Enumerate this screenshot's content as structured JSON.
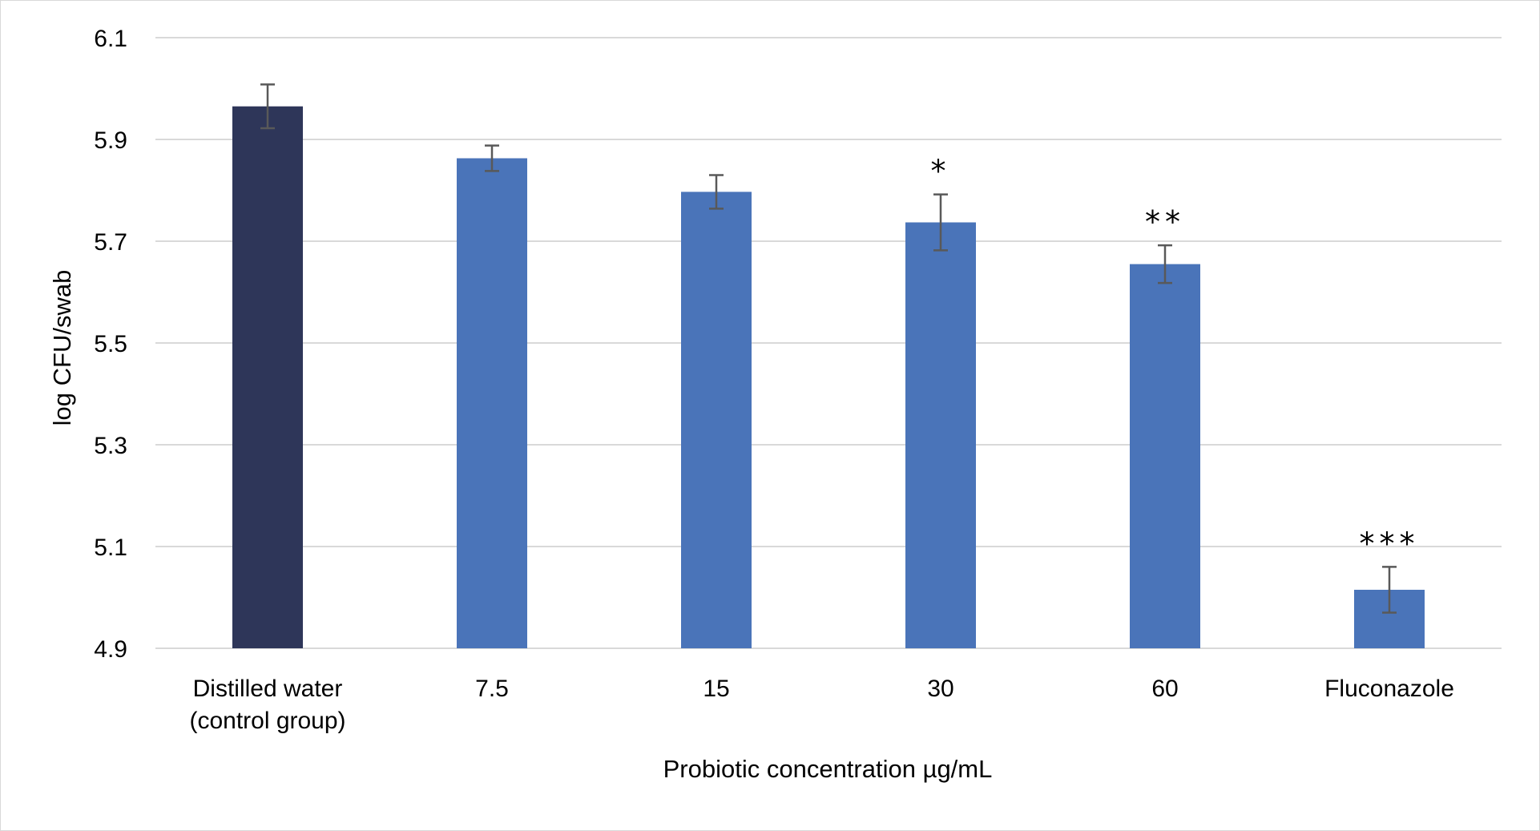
{
  "chart_data": {
    "type": "bar",
    "title": "",
    "xlabel": "Probiotic concentration µg/mL",
    "ylabel": "log CFU/swab",
    "ylim": [
      4.9,
      6.1
    ],
    "yticks": [
      "4.9",
      "5.1",
      "5.3",
      "5.5",
      "5.7",
      "5.9",
      "6.1"
    ],
    "grid": true,
    "legend": "none",
    "categories": [
      [
        "Distilled water",
        "(control group)"
      ],
      [
        "7.5"
      ],
      [
        "15"
      ],
      [
        "30"
      ],
      [
        "60"
      ],
      [
        "Fluconazole"
      ]
    ],
    "values": [
      5.965,
      5.863,
      5.797,
      5.737,
      5.655,
      5.015
    ],
    "errors": [
      0.043,
      0.025,
      0.033,
      0.055,
      0.037,
      0.045
    ],
    "significance": [
      "",
      "",
      "",
      "*",
      "**",
      "***"
    ],
    "colors": [
      "#2e3659",
      "#4a74b9",
      "#4a74b9",
      "#4a74b9",
      "#4a74b9",
      "#4a74b9"
    ],
    "gridline_color": "#d9d9d9",
    "errorbar_color": "#595959"
  }
}
